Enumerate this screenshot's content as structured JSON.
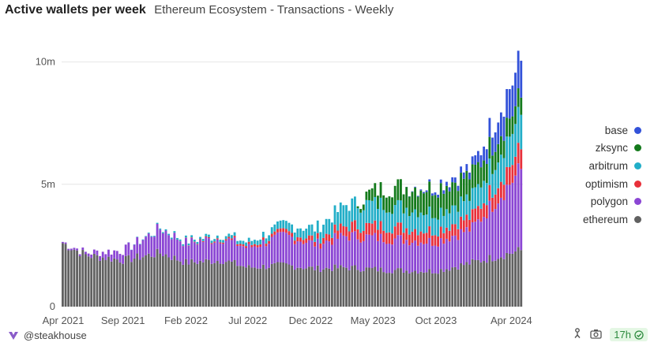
{
  "header": {
    "title": "Active wallets per week",
    "subtitle": "Ethereum Ecosystem - Transactions - Weekly"
  },
  "footer": {
    "author": "@steakhouse",
    "age_badge": "17h"
  },
  "colors": {
    "ethereum": "#616161",
    "polygon": "#8b46d4",
    "optimism": "#e8303a",
    "arbitrum": "#22aec8",
    "zksync": "#147a1c",
    "base": "#3352d9",
    "grid": "#e6e6e6",
    "footer_brand": "#8a5cc9",
    "badge_text": "#2d8a3e"
  },
  "chart_data": {
    "type": "bar",
    "stacked": true,
    "x_axis": {
      "ticks": [
        "Apr 2021",
        "Sep 2021",
        "Feb 2022",
        "Jul 2022",
        "Dec 2022",
        "May 2023",
        "Oct 2023",
        "Apr 2024"
      ],
      "start": "2021-04-05",
      "end": "2024-04-29",
      "interval": "weekly"
    },
    "y_axis": {
      "ticks": [
        {
          "value": 0,
          "label": "0"
        },
        {
          "value": 5,
          "label": "5m"
        },
        {
          "value": 10,
          "label": "10m"
        }
      ],
      "ylim": [
        0,
        10.6
      ],
      "unit": "m"
    },
    "grid": true,
    "legend_position": "right",
    "legend_order": [
      "base",
      "zksync",
      "arbitrum",
      "optimism",
      "polygon",
      "ethereum"
    ],
    "series": [
      {
        "name": "ethereum",
        "color": "#616161",
        "keyframes": [
          [
            "2021-04-05",
            2.6
          ],
          [
            "2021-06-01",
            2.1
          ],
          [
            "2021-09-01",
            1.9
          ],
          [
            "2021-12-01",
            2.2
          ],
          [
            "2022-02-01",
            1.8
          ],
          [
            "2022-05-01",
            1.9
          ],
          [
            "2022-07-01",
            1.6
          ],
          [
            "2022-10-01",
            1.7
          ],
          [
            "2022-12-15",
            1.55
          ],
          [
            "2023-03-01",
            1.6
          ],
          [
            "2023-06-01",
            1.5
          ],
          [
            "2023-10-01",
            1.45
          ],
          [
            "2024-01-01",
            1.8
          ],
          [
            "2024-04-29",
            2.3
          ]
        ]
      },
      {
        "name": "polygon",
        "color": "#8b46d4",
        "keyframes": [
          [
            "2021-04-05",
            0.05
          ],
          [
            "2021-06-01",
            0.1
          ],
          [
            "2021-09-01",
            0.4
          ],
          [
            "2021-12-01",
            1.0
          ],
          [
            "2022-02-01",
            0.8
          ],
          [
            "2022-05-01",
            0.9
          ],
          [
            "2022-07-01",
            0.8
          ],
          [
            "2022-10-01",
            1.2
          ],
          [
            "2022-12-15",
            1.0
          ],
          [
            "2023-03-01",
            1.3
          ],
          [
            "2023-06-01",
            1.3
          ],
          [
            "2023-10-01",
            1.2
          ],
          [
            "2024-01-01",
            1.4
          ],
          [
            "2024-04-29",
            3.3
          ]
        ]
      },
      {
        "name": "optimism",
        "color": "#e8303a",
        "keyframes": [
          [
            "2021-04-05",
            0
          ],
          [
            "2022-01-01",
            0.0
          ],
          [
            "2022-07-01",
            0.08
          ],
          [
            "2022-12-15",
            0.2
          ],
          [
            "2023-03-01",
            0.4
          ],
          [
            "2023-06-01",
            0.5
          ],
          [
            "2023-10-01",
            0.45
          ],
          [
            "2024-01-01",
            0.5
          ],
          [
            "2024-04-29",
            0.8
          ]
        ]
      },
      {
        "name": "arbitrum",
        "color": "#22aec8",
        "keyframes": [
          [
            "2021-04-05",
            0
          ],
          [
            "2021-09-01",
            0.0
          ],
          [
            "2022-07-01",
            0.15
          ],
          [
            "2022-12-15",
            0.45
          ],
          [
            "2023-03-01",
            0.9
          ],
          [
            "2023-06-01",
            0.9
          ],
          [
            "2023-10-01",
            0.75
          ],
          [
            "2024-01-01",
            0.8
          ],
          [
            "2024-04-29",
            1.4
          ]
        ]
      },
      {
        "name": "zksync",
        "color": "#147a1c",
        "keyframes": [
          [
            "2021-04-05",
            0
          ],
          [
            "2023-03-20",
            0.0
          ],
          [
            "2023-05-01",
            0.5
          ],
          [
            "2023-07-01",
            0.8
          ],
          [
            "2023-10-01",
            1.0
          ],
          [
            "2024-01-01",
            0.9
          ],
          [
            "2024-04-29",
            0.7
          ]
        ]
      },
      {
        "name": "base",
        "color": "#3352d9",
        "keyframes": [
          [
            "2021-04-05",
            0
          ],
          [
            "2023-07-20",
            0.0
          ],
          [
            "2023-09-01",
            0.05
          ],
          [
            "2024-01-01",
            0.3
          ],
          [
            "2024-04-29",
            1.5
          ]
        ]
      }
    ]
  }
}
